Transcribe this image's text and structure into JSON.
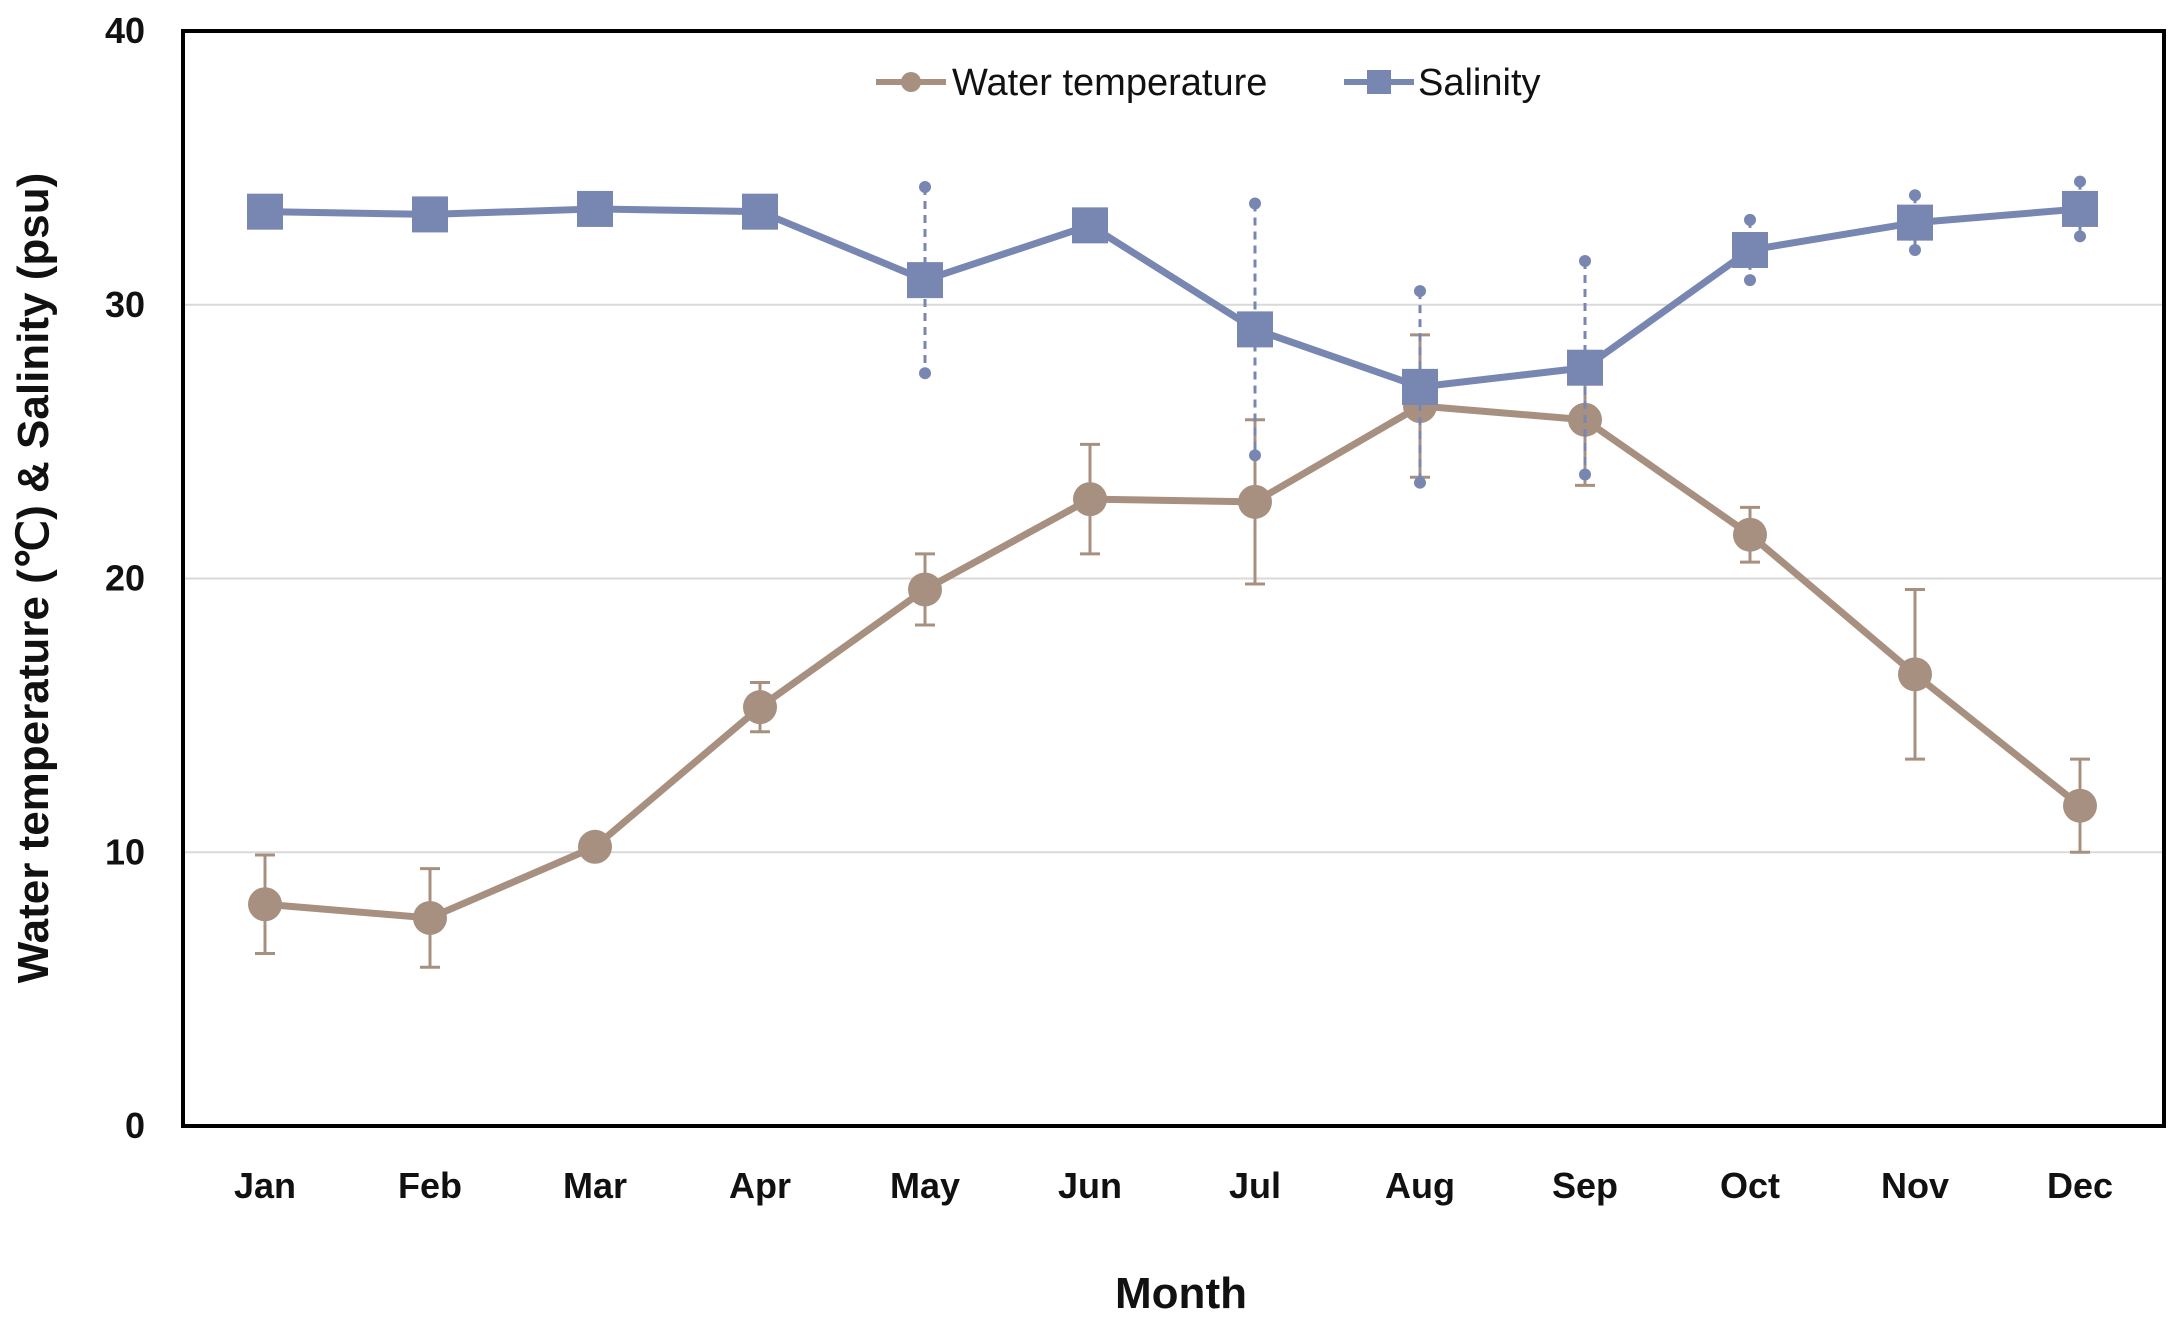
{
  "chart_data": {
    "type": "line",
    "xlabel": "Month",
    "ylabel": "Water temperature (℃) & Salinity (psu)",
    "ylim": [
      0,
      40
    ],
    "yticks": [
      0,
      10,
      20,
      30,
      40
    ],
    "ytick_labels": [
      "0",
      "10",
      "20",
      "30",
      "40"
    ],
    "grid": true,
    "legend_position": "top-center",
    "categories": [
      "Jan",
      "Feb",
      "Mar",
      "Apr",
      "May",
      "Jun",
      "Jul",
      "Aug",
      "Sep",
      "Oct",
      "Nov",
      "Dec"
    ],
    "series": [
      {
        "name": "Water temperature",
        "marker": "circle",
        "color": "#A89080",
        "error_style": "solid",
        "values": [
          8.1,
          7.6,
          10.2,
          15.3,
          19.6,
          22.9,
          22.8,
          26.3,
          25.8,
          21.6,
          16.5,
          11.7
        ],
        "errors": [
          1.8,
          1.8,
          0.3,
          0.9,
          1.3,
          2.0,
          3.0,
          2.6,
          2.4,
          1.0,
          3.1,
          1.7
        ]
      },
      {
        "name": "Salinity",
        "marker": "square",
        "color": "#7886B2",
        "error_style": "dashed",
        "values": [
          33.4,
          33.3,
          33.5,
          33.4,
          30.9,
          32.9,
          29.1,
          27.0,
          27.7,
          32.0,
          33.0,
          33.5
        ],
        "errors": [
          0.1,
          0.1,
          0.1,
          0.1,
          3.4,
          0.3,
          4.6,
          3.5,
          3.9,
          1.1,
          1.0,
          1.0
        ]
      }
    ]
  }
}
